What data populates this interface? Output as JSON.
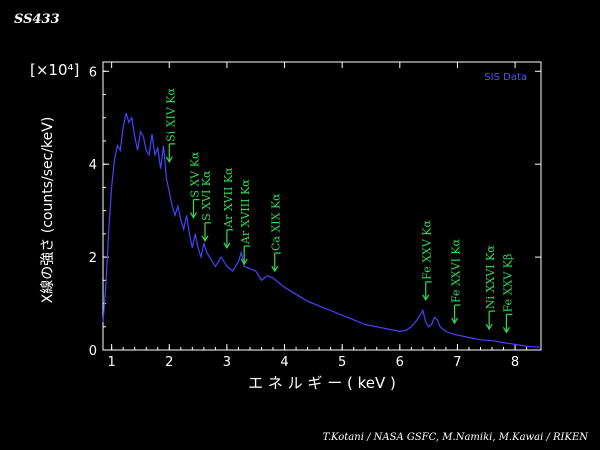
{
  "header": {
    "title": "SS433"
  },
  "footer": {
    "credit": "T.Kotani / NASA GSFC,   M.Namiki, M.Kawai / RIKEN"
  },
  "colors": {
    "background": "#000000",
    "axes": "#ffffff",
    "spectrum": "#4444ff",
    "lines": "#33dd55",
    "legend": "#5555ff"
  },
  "chart_data": {
    "type": "line",
    "xlabel": "エ ネ ル ギ ー ( keV )",
    "ylabel": "X線の強さ (counts/sec/keV)",
    "y_multiplier": "[×10⁴]",
    "xlim": [
      0.85,
      8.45
    ],
    "ylim": [
      0,
      6.2
    ],
    "x_ticks": [
      1,
      2,
      3,
      4,
      5,
      6,
      7,
      8
    ],
    "y_ticks": [
      0,
      2,
      4,
      6
    ],
    "grid": false,
    "legend_position": "top-right",
    "series": [
      {
        "name": "SIS Data",
        "x": [
          0.85,
          0.9,
          0.95,
          1.0,
          1.05,
          1.1,
          1.15,
          1.2,
          1.25,
          1.3,
          1.35,
          1.4,
          1.45,
          1.5,
          1.55,
          1.6,
          1.65,
          1.7,
          1.75,
          1.8,
          1.85,
          1.9,
          1.95,
          2.0,
          2.05,
          2.1,
          2.15,
          2.2,
          2.25,
          2.3,
          2.35,
          2.4,
          2.45,
          2.5,
          2.55,
          2.6,
          2.65,
          2.7,
          2.75,
          2.8,
          2.9,
          3.0,
          3.1,
          3.2,
          3.25,
          3.3,
          3.4,
          3.5,
          3.6,
          3.7,
          3.8,
          3.9,
          4.0,
          4.2,
          4.4,
          4.6,
          4.8,
          5.0,
          5.2,
          5.4,
          5.6,
          5.8,
          6.0,
          6.1,
          6.2,
          6.3,
          6.4,
          6.45,
          6.5,
          6.55,
          6.6,
          6.65,
          6.7,
          6.8,
          6.9,
          7.0,
          7.2,
          7.4,
          7.6,
          7.8,
          8.0,
          8.2,
          8.45
        ],
        "y": [
          0.6,
          1.4,
          2.6,
          3.5,
          4.1,
          4.4,
          4.3,
          4.8,
          5.1,
          4.9,
          5.0,
          4.6,
          4.3,
          4.7,
          4.6,
          4.3,
          4.2,
          4.65,
          4.2,
          4.35,
          3.9,
          4.4,
          3.7,
          3.4,
          3.1,
          2.9,
          3.1,
          2.8,
          2.6,
          2.9,
          2.5,
          2.2,
          2.5,
          2.2,
          2.0,
          2.3,
          2.1,
          2.0,
          1.9,
          1.8,
          2.0,
          1.8,
          1.7,
          1.9,
          2.1,
          1.8,
          1.75,
          1.7,
          1.5,
          1.6,
          1.55,
          1.45,
          1.35,
          1.2,
          1.05,
          0.95,
          0.85,
          0.75,
          0.65,
          0.55,
          0.5,
          0.45,
          0.4,
          0.42,
          0.5,
          0.65,
          0.85,
          0.6,
          0.5,
          0.55,
          0.7,
          0.65,
          0.5,
          0.4,
          0.35,
          0.32,
          0.27,
          0.22,
          0.2,
          0.16,
          0.12,
          0.08,
          0.06
        ]
      }
    ],
    "line_labels": [
      {
        "label": "Si XIV Kα",
        "energy": 2.0,
        "level": 4.05
      },
      {
        "label": "S XV Kα",
        "energy": 2.42,
        "level": 2.85
      },
      {
        "label": "S XVI Kα",
        "energy": 2.62,
        "level": 2.35
      },
      {
        "label": "Ar XVII Kα",
        "energy": 3.0,
        "level": 2.2
      },
      {
        "label": "Ar XVIII Kα",
        "energy": 3.3,
        "level": 1.85
      },
      {
        "label": "Ca XIX Kα",
        "energy": 3.83,
        "level": 1.7
      },
      {
        "label": "Fe XXV Kα",
        "energy": 6.45,
        "level": 1.08
      },
      {
        "label": "Fe XXVI Kα",
        "energy": 6.95,
        "level": 0.58
      },
      {
        "label": "Ni XXVI Kα",
        "energy": 7.55,
        "level": 0.45
      },
      {
        "label": "Fe XXV Kβ",
        "energy": 7.85,
        "level": 0.38
      }
    ]
  }
}
